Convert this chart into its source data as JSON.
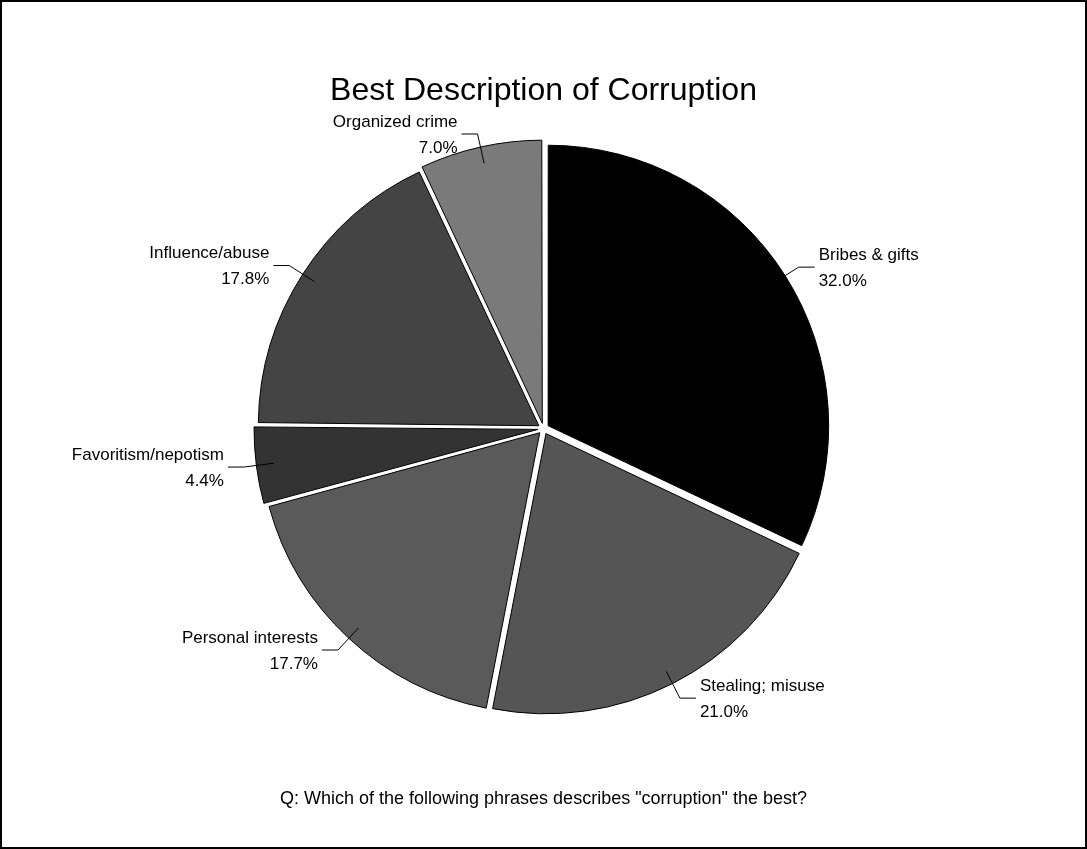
{
  "chart_data": {
    "type": "pie",
    "title": "Best Description of Corruption",
    "categories": [
      "Bribes & gifts",
      "Stealing; misuse",
      "Personal interests",
      "Favoritism/nepotism",
      "Influence/abuse",
      "Organized crime"
    ],
    "values": [
      32.0,
      21.0,
      17.7,
      4.4,
      17.8,
      7.0
    ],
    "value_labels": [
      "32.0%",
      "21.0%",
      "17.7%",
      "4.4%",
      "17.8%",
      "7.0%"
    ],
    "colors": [
      "#000000",
      "#555555",
      "#5a5a5a",
      "#333333",
      "#444444",
      "#7a7a7a"
    ],
    "annotations": [
      "Q: Which of the following phrases describes \"corruption\" the best?"
    ]
  }
}
